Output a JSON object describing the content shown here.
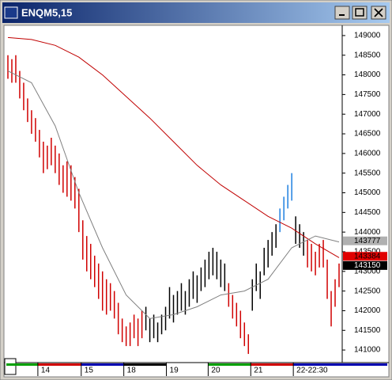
{
  "chart_data": {
    "type": "ohlc",
    "title": "ENQM5,15",
    "x": [
      0,
      1,
      2,
      3,
      4,
      5,
      6,
      7,
      8,
      9,
      10,
      11,
      12,
      13,
      14,
      15,
      16,
      17,
      18,
      19,
      20,
      21,
      22,
      23,
      24,
      25,
      26,
      27,
      28,
      29,
      30,
      31,
      32,
      33,
      34,
      35,
      36,
      37,
      38,
      39,
      40,
      41,
      42,
      43,
      44,
      45,
      46,
      47,
      48,
      49,
      50,
      51,
      52,
      53,
      54,
      55,
      56,
      57,
      58,
      59,
      60,
      61,
      62,
      63,
      64,
      65,
      66,
      67,
      68,
      69,
      70,
      71,
      72,
      73,
      74,
      75,
      76,
      77,
      78,
      79,
      80,
      81,
      82,
      83,
      84
    ],
    "high": [
      148500,
      148400,
      148500,
      148100,
      147800,
      147400,
      147100,
      146900,
      146600,
      146300,
      146200,
      146400,
      146200,
      146000,
      145700,
      145800,
      145700,
      145400,
      145100,
      144300,
      143900,
      143700,
      143400,
      143200,
      143000,
      142800,
      142700,
      142500,
      142200,
      141800,
      141600,
      141700,
      141900,
      141800,
      142000,
      142100,
      141800,
      141900,
      141700,
      141900,
      142100,
      142600,
      142400,
      142500,
      142700,
      142500,
      142800,
      143000,
      142900,
      143100,
      143300,
      143500,
      143600,
      143500,
      143300,
      143200,
      142700,
      142400,
      142200,
      142000,
      141700,
      141400,
      142800,
      143200,
      143000,
      143600,
      143800,
      144000,
      144200,
      144600,
      144900,
      145200,
      145500,
      144400,
      144200,
      144000,
      143800,
      143700,
      143500,
      143700,
      143800,
      143300,
      142500,
      142800,
      143200
    ],
    "low": [
      147900,
      147800,
      147800,
      147400,
      147100,
      146800,
      146500,
      146300,
      145900,
      145500,
      145600,
      145700,
      145500,
      145200,
      145000,
      144900,
      144800,
      144600,
      144000,
      143300,
      143000,
      142800,
      142600,
      142300,
      142000,
      141900,
      142000,
      141800,
      141400,
      141200,
      141100,
      141100,
      141300,
      141100,
      141300,
      141500,
      141200,
      141300,
      141200,
      141400,
      141500,
      141800,
      141700,
      141900,
      142000,
      141900,
      142100,
      142300,
      142200,
      142500,
      142600,
      142800,
      142900,
      142800,
      142600,
      142500,
      142100,
      141800,
      141600,
      141300,
      141100,
      140900,
      142000,
      142500,
      142300,
      142900,
      143100,
      143400,
      143600,
      144000,
      144300,
      144600,
      144800,
      143700,
      143600,
      143400,
      143100,
      143000,
      142900,
      143100,
      143100,
      142300,
      141600,
      142100,
      142600
    ],
    "colors": [
      "#d00000",
      "#d00000",
      "#d00000",
      "#d00000",
      "#d00000",
      "#d00000",
      "#d00000",
      "#d00000",
      "#d00000",
      "#d00000",
      "#d00000",
      "#d00000",
      "#d00000",
      "#d00000",
      "#d00000",
      "#d00000",
      "#d00000",
      "#d00000",
      "#d00000",
      "#d00000",
      "#d00000",
      "#d00000",
      "#d00000",
      "#d00000",
      "#d00000",
      "#d00000",
      "#d00000",
      "#d00000",
      "#d00000",
      "#d00000",
      "#d00000",
      "#d00000",
      "#d00000",
      "#d00000",
      "#d00000",
      "#000000",
      "#000000",
      "#000000",
      "#000000",
      "#000000",
      "#000000",
      "#000000",
      "#000000",
      "#000000",
      "#000000",
      "#000000",
      "#000000",
      "#000000",
      "#000000",
      "#000000",
      "#000000",
      "#000000",
      "#000000",
      "#000000",
      "#000000",
      "#000000",
      "#d00000",
      "#d00000",
      "#d00000",
      "#d00000",
      "#d00000",
      "#d00000",
      "#000000",
      "#000000",
      "#000000",
      "#000000",
      "#000000",
      "#000000",
      "#000000",
      "#1e7fe0",
      "#1e7fe0",
      "#1e7fe0",
      "#1e7fe0",
      "#000000",
      "#000000",
      "#000000",
      "#d00000",
      "#d00000",
      "#d00000",
      "#d00000",
      "#d00000",
      "#d00000",
      "#d00000",
      "#d00000",
      "#d00000"
    ],
    "lines": [
      {
        "color": "#c00000",
        "x": [
          0,
          6,
          12,
          18,
          24,
          30,
          36,
          42,
          48,
          54,
          60,
          66,
          72,
          78,
          84
        ],
        "values": [
          148950,
          148900,
          148750,
          148450,
          148000,
          147450,
          146900,
          146300,
          145700,
          145200,
          144800,
          144400,
          144100,
          143700,
          143350
        ]
      },
      {
        "color": "#808080",
        "x": [
          0,
          6,
          12,
          18,
          24,
          30,
          36,
          42,
          48,
          54,
          60,
          66,
          72,
          78,
          84
        ],
        "values": [
          148100,
          147800,
          146700,
          145000,
          143600,
          142400,
          141800,
          141900,
          142100,
          142400,
          142500,
          142800,
          143600,
          143900,
          143750
        ]
      }
    ],
    "price_tags": [
      {
        "value": 143777,
        "color": "#b0b0b0",
        "text_color": "#000000"
      },
      {
        "value": 143384,
        "color": "#e00000",
        "text_color": "#000000"
      },
      {
        "value": 143150,
        "color": "#000000",
        "text_color": "#ffffff"
      }
    ],
    "xlim": [
      -0.4,
      84.6
    ],
    "xticks": [
      {
        "value": 7.6,
        "label": "14"
      },
      {
        "value": 18.6,
        "label": "15"
      },
      {
        "value": 29.4,
        "label": "18"
      },
      {
        "value": 40.2,
        "label": "19"
      },
      {
        "value": 50.8,
        "label": "20"
      },
      {
        "value": 61.6,
        "label": "21"
      },
      {
        "value": 72.4,
        "label": "22-22:30"
      }
    ],
    "ylim": [
      140700,
      149260
    ],
    "yticks": [
      141000,
      141500,
      142000,
      142500,
      143000,
      143500,
      144000,
      144500,
      145000,
      145500,
      146000,
      146500,
      147000,
      147500,
      148000,
      148500,
      149000
    ]
  }
}
